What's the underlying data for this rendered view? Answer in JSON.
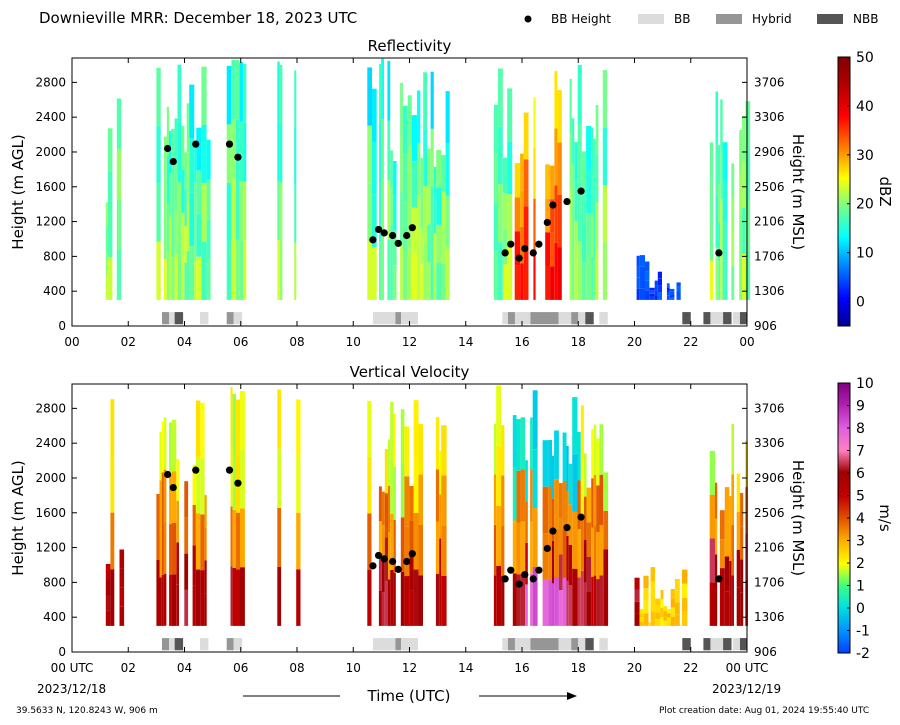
{
  "header": {
    "title": "Downieville MRR:  December 18, 2023 UTC",
    "legend": [
      {
        "label": "BB Height",
        "marker": "dot",
        "color": "#000000"
      },
      {
        "label": "BB",
        "marker": "box",
        "color": "#dcdcdc"
      },
      {
        "label": "Hybrid",
        "marker": "box",
        "color": "#969696"
      },
      {
        "label": "NBB",
        "marker": "box",
        "color": "#555555"
      }
    ]
  },
  "footer": {
    "location": "39.5633 N, 120.8243 W, 906 m",
    "creation_date": "Plot creation date: Aug 01, 2024 19:55:40 UTC",
    "x_title": "Time (UTC)",
    "start_label": "00 UTC",
    "start_date": "2023/12/18",
    "end_label": "00 UTC",
    "end_date": "2023/12/19"
  },
  "chart_data": [
    {
      "type": "heatmap",
      "title": "Reflectivity",
      "xlabel": "",
      "ylabel": "Height (m AGL)",
      "y2label": "Height (m MSL)",
      "xlim": [
        0,
        24
      ],
      "ylim": [
        0,
        3080
      ],
      "x_ticks": [
        "00",
        "02",
        "04",
        "06",
        "08",
        "10",
        "12",
        "14",
        "16",
        "18",
        "20",
        "22",
        "00"
      ],
      "y_ticks": [
        0,
        400,
        800,
        1200,
        1600,
        2000,
        2400,
        2800
      ],
      "y2_ticks": [
        906,
        1306,
        1706,
        2106,
        2506,
        2906,
        3306,
        3706
      ],
      "colorbar": {
        "label": "dBZ",
        "min": -5,
        "max": 50,
        "ticks": [
          0,
          10,
          20,
          30,
          40,
          50
        ]
      },
      "precip_periods_hours": [
        [
          1.2,
          1.7
        ],
        [
          3.0,
          4.8
        ],
        [
          5.5,
          6.1
        ],
        [
          7.3,
          7.4
        ],
        [
          7.9,
          8.0
        ],
        [
          10.5,
          13.3
        ],
        [
          15.0,
          18.9
        ],
        [
          20.0,
          21.8
        ],
        [
          22.5,
          24.0
        ]
      ],
      "bb_height_points": [
        {
          "x": 3.4,
          "y": 2040
        },
        {
          "x": 3.6,
          "y": 1890
        },
        {
          "x": 4.4,
          "y": 2090
        },
        {
          "x": 5.6,
          "y": 2090
        },
        {
          "x": 5.9,
          "y": 1940
        },
        {
          "x": 10.7,
          "y": 990
        },
        {
          "x": 10.9,
          "y": 1110
        },
        {
          "x": 11.1,
          "y": 1070
        },
        {
          "x": 11.4,
          "y": 1040
        },
        {
          "x": 11.6,
          "y": 950
        },
        {
          "x": 11.9,
          "y": 1040
        },
        {
          "x": 12.1,
          "y": 1130
        },
        {
          "x": 15.4,
          "y": 840
        },
        {
          "x": 15.6,
          "y": 940
        },
        {
          "x": 15.9,
          "y": 780
        },
        {
          "x": 16.1,
          "y": 890
        },
        {
          "x": 16.4,
          "y": 840
        },
        {
          "x": 16.6,
          "y": 940
        },
        {
          "x": 16.9,
          "y": 1190
        },
        {
          "x": 17.1,
          "y": 1390
        },
        {
          "x": 17.6,
          "y": 1430
        },
        {
          "x": 18.1,
          "y": 1550
        },
        {
          "x": 23.0,
          "y": 840
        }
      ],
      "bb_type_segments": [
        {
          "start": 3.2,
          "end": 3.45,
          "type": "Hybrid"
        },
        {
          "start": 3.45,
          "end": 3.65,
          "type": "BB"
        },
        {
          "start": 3.65,
          "end": 3.95,
          "type": "NBB"
        },
        {
          "start": 4.55,
          "end": 4.85,
          "type": "BB"
        },
        {
          "start": 5.5,
          "end": 5.75,
          "type": "Hybrid"
        },
        {
          "start": 5.75,
          "end": 6.05,
          "type": "BB"
        },
        {
          "start": 10.7,
          "end": 11.5,
          "type": "BB"
        },
        {
          "start": 11.5,
          "end": 11.7,
          "type": "Hybrid"
        },
        {
          "start": 11.7,
          "end": 12.3,
          "type": "BB"
        },
        {
          "start": 15.3,
          "end": 15.5,
          "type": "BB"
        },
        {
          "start": 15.5,
          "end": 15.75,
          "type": "Hybrid"
        },
        {
          "start": 15.75,
          "end": 16.3,
          "type": "BB"
        },
        {
          "start": 16.3,
          "end": 17.3,
          "type": "Hybrid"
        },
        {
          "start": 17.3,
          "end": 17.75,
          "type": "BB"
        },
        {
          "start": 17.75,
          "end": 18.0,
          "type": "Hybrid"
        },
        {
          "start": 18.0,
          "end": 18.25,
          "type": "BB"
        },
        {
          "start": 18.25,
          "end": 18.55,
          "type": "NBB"
        },
        {
          "start": 18.75,
          "end": 19.05,
          "type": "BB"
        },
        {
          "start": 21.7,
          "end": 22.0,
          "type": "NBB"
        },
        {
          "start": 22.45,
          "end": 22.7,
          "type": "NBB"
        },
        {
          "start": 22.7,
          "end": 23.15,
          "type": "BB"
        },
        {
          "start": 23.15,
          "end": 23.45,
          "type": "NBB"
        },
        {
          "start": 23.5,
          "end": 23.75,
          "type": "BB"
        },
        {
          "start": 23.75,
          "end": 24.0,
          "type": "NBB"
        }
      ]
    },
    {
      "type": "heatmap",
      "title": "Vertical Velocity",
      "xlabel": "Time (UTC)",
      "ylabel": "Height (m AGL)",
      "y2label": "Height (m MSL)",
      "xlim": [
        0,
        24
      ],
      "ylim": [
        0,
        3080
      ],
      "x_ticks": [
        "00 UTC",
        "02",
        "04",
        "06",
        "08",
        "10",
        "12",
        "14",
        "16",
        "18",
        "20",
        "22",
        "00 UTC"
      ],
      "y_ticks": [
        0,
        400,
        800,
        1200,
        1600,
        2000,
        2400,
        2800
      ],
      "y2_ticks": [
        906,
        1306,
        1706,
        2106,
        2506,
        2906,
        3306,
        3706
      ],
      "colorbar": {
        "label": "m/s",
        "min": -2,
        "max": 10,
        "ticks": [
          -2,
          -1,
          0,
          1,
          2,
          3,
          4,
          5,
          6,
          7,
          8,
          9,
          10
        ]
      },
      "precip_periods_hours": [
        [
          1.2,
          1.7
        ],
        [
          3.0,
          4.8
        ],
        [
          5.5,
          6.1
        ],
        [
          7.3,
          7.4
        ],
        [
          7.9,
          8.0
        ],
        [
          10.5,
          13.3
        ],
        [
          15.0,
          18.9
        ],
        [
          20.0,
          21.8
        ],
        [
          22.5,
          24.0
        ]
      ],
      "bb_height_points": [
        {
          "x": 3.4,
          "y": 2040
        },
        {
          "x": 3.6,
          "y": 1890
        },
        {
          "x": 4.4,
          "y": 2090
        },
        {
          "x": 5.6,
          "y": 2090
        },
        {
          "x": 5.9,
          "y": 1940
        },
        {
          "x": 10.7,
          "y": 990
        },
        {
          "x": 10.9,
          "y": 1110
        },
        {
          "x": 11.1,
          "y": 1070
        },
        {
          "x": 11.4,
          "y": 1040
        },
        {
          "x": 11.6,
          "y": 950
        },
        {
          "x": 11.9,
          "y": 1040
        },
        {
          "x": 12.1,
          "y": 1130
        },
        {
          "x": 15.4,
          "y": 840
        },
        {
          "x": 15.6,
          "y": 940
        },
        {
          "x": 15.9,
          "y": 780
        },
        {
          "x": 16.1,
          "y": 890
        },
        {
          "x": 16.4,
          "y": 840
        },
        {
          "x": 16.6,
          "y": 940
        },
        {
          "x": 16.9,
          "y": 1190
        },
        {
          "x": 17.1,
          "y": 1390
        },
        {
          "x": 17.6,
          "y": 1430
        },
        {
          "x": 18.1,
          "y": 1550
        },
        {
          "x": 23.0,
          "y": 840
        }
      ],
      "bb_type_segments": [
        {
          "start": 3.2,
          "end": 3.45,
          "type": "Hybrid"
        },
        {
          "start": 3.45,
          "end": 3.65,
          "type": "BB"
        },
        {
          "start": 3.65,
          "end": 3.95,
          "type": "NBB"
        },
        {
          "start": 4.55,
          "end": 4.85,
          "type": "BB"
        },
        {
          "start": 5.5,
          "end": 5.75,
          "type": "Hybrid"
        },
        {
          "start": 5.75,
          "end": 6.05,
          "type": "BB"
        },
        {
          "start": 10.7,
          "end": 11.5,
          "type": "BB"
        },
        {
          "start": 11.5,
          "end": 11.7,
          "type": "Hybrid"
        },
        {
          "start": 11.7,
          "end": 12.3,
          "type": "BB"
        },
        {
          "start": 15.3,
          "end": 15.5,
          "type": "BB"
        },
        {
          "start": 15.5,
          "end": 15.75,
          "type": "Hybrid"
        },
        {
          "start": 15.75,
          "end": 16.3,
          "type": "BB"
        },
        {
          "start": 16.3,
          "end": 17.3,
          "type": "Hybrid"
        },
        {
          "start": 17.3,
          "end": 17.75,
          "type": "BB"
        },
        {
          "start": 17.75,
          "end": 18.0,
          "type": "Hybrid"
        },
        {
          "start": 18.0,
          "end": 18.25,
          "type": "BB"
        },
        {
          "start": 18.25,
          "end": 18.55,
          "type": "NBB"
        },
        {
          "start": 18.75,
          "end": 19.05,
          "type": "BB"
        },
        {
          "start": 21.7,
          "end": 22.0,
          "type": "NBB"
        },
        {
          "start": 22.45,
          "end": 22.7,
          "type": "NBB"
        },
        {
          "start": 22.7,
          "end": 23.15,
          "type": "BB"
        },
        {
          "start": 23.15,
          "end": 23.45,
          "type": "NBB"
        },
        {
          "start": 23.5,
          "end": 23.75,
          "type": "BB"
        },
        {
          "start": 23.75,
          "end": 24.0,
          "type": "NBB"
        }
      ]
    }
  ]
}
